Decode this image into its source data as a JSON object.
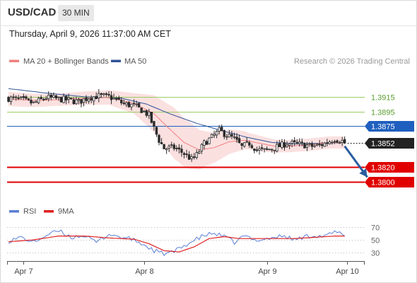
{
  "header": {
    "symbol": "USD/CAD",
    "timeframe": "30 MIN",
    "datetime": "Thursday, April 9, 2026 11:37:00 AM CET"
  },
  "legend": {
    "ma20_label": "MA 20 + Bollinger Bands",
    "ma50_label": "MA 50",
    "credit": "Research © 2026 Trading Central",
    "ma20_color": "#f08080",
    "ma50_color": "#2f5597"
  },
  "rsi_legend": {
    "rsi_label": "RSI",
    "ma9_label": "9MA",
    "rsi_color": "#5b7fd6",
    "ma9_color": "#e02020"
  },
  "chart_data": [
    {
      "type": "candlestick",
      "ylim": [
        1.3768,
        1.3955
      ],
      "levels": [
        {
          "value": 1.3915,
          "label": "1.3915",
          "kind": "resistance-target",
          "color": "#9acd64"
        },
        {
          "value": 1.3895,
          "label": "1.3895",
          "kind": "resistance-target",
          "color": "#9acd64"
        },
        {
          "value": 1.3875,
          "label": "1.3875",
          "kind": "pivot",
          "color": "#1f5fbf"
        },
        {
          "value": 1.3852,
          "label": "1.3852",
          "kind": "last-price",
          "color": "#222222"
        },
        {
          "value": 1.382,
          "label": "1.3820",
          "kind": "support",
          "color": "#e00000"
        },
        {
          "value": 1.38,
          "label": "1.3800",
          "kind": "support",
          "color": "#e00000"
        }
      ],
      "x_labels": [
        "Apr 7",
        "Apr 8",
        "Apr 9",
        "Apr 10"
      ],
      "x_label_index": [
        6,
        54,
        103,
        135
      ],
      "bars_total": 140,
      "close_anchors": [
        [
          0,
          1.3913
        ],
        [
          5,
          1.3911
        ],
        [
          10,
          1.3906
        ],
        [
          15,
          1.3914
        ],
        [
          20,
          1.3912
        ],
        [
          25,
          1.391
        ],
        [
          28,
          1.3908
        ],
        [
          32,
          1.3914
        ],
        [
          36,
          1.3916
        ],
        [
          40,
          1.3915
        ],
        [
          43,
          1.3911
        ],
        [
          46,
          1.3905
        ],
        [
          50,
          1.3903
        ],
        [
          53,
          1.3897
        ],
        [
          56,
          1.389
        ],
        [
          58,
          1.3872
        ],
        [
          60,
          1.3856
        ],
        [
          62,
          1.3845
        ],
        [
          66,
          1.3846
        ],
        [
          70,
          1.3838
        ],
        [
          73,
          1.383
        ],
        [
          75,
          1.3836
        ],
        [
          78,
          1.3852
        ],
        [
          81,
          1.386
        ],
        [
          84,
          1.3869
        ],
        [
          86,
          1.3865
        ],
        [
          90,
          1.3858
        ],
        [
          93,
          1.3847
        ],
        [
          96,
          1.3852
        ],
        [
          99,
          1.3843
        ],
        [
          102,
          1.3842
        ],
        [
          105,
          1.3845
        ],
        [
          108,
          1.3848
        ],
        [
          111,
          1.3852
        ],
        [
          114,
          1.3851
        ],
        [
          117,
          1.385
        ],
        [
          121,
          1.3848
        ],
        [
          124,
          1.3849
        ],
        [
          127,
          1.3853
        ],
        [
          130,
          1.3858
        ],
        [
          133,
          1.3855
        ],
        [
          134,
          1.3852
        ]
      ],
      "ma20_anchors": [
        [
          0,
          1.3912
        ],
        [
          10,
          1.391
        ],
        [
          20,
          1.3911
        ],
        [
          30,
          1.3913
        ],
        [
          40,
          1.3914
        ],
        [
          50,
          1.3906
        ],
        [
          58,
          1.3892
        ],
        [
          64,
          1.3872
        ],
        [
          70,
          1.3853
        ],
        [
          76,
          1.3843
        ],
        [
          82,
          1.3846
        ],
        [
          88,
          1.3854
        ],
        [
          94,
          1.3856
        ],
        [
          100,
          1.3852
        ],
        [
          106,
          1.3848
        ],
        [
          112,
          1.3848
        ],
        [
          120,
          1.385
        ],
        [
          128,
          1.3853
        ],
        [
          134,
          1.3853
        ]
      ],
      "bb_width_anchors": [
        [
          0,
          1.0007
        ],
        [
          20,
          1.0006
        ],
        [
          40,
          1.0007
        ],
        [
          50,
          1.001
        ],
        [
          58,
          1.0018
        ],
        [
          66,
          1.0025
        ],
        [
          72,
          1.0023
        ],
        [
          80,
          1.0016
        ],
        [
          88,
          1.0012
        ],
        [
          96,
          1.0008
        ],
        [
          110,
          1.0006
        ],
        [
          134,
          1.0006
        ]
      ],
      "ma50_anchors": [
        [
          0,
          1.3926
        ],
        [
          15,
          1.392
        ],
        [
          30,
          1.3915
        ],
        [
          45,
          1.3913
        ],
        [
          55,
          1.3905
        ],
        [
          65,
          1.3891
        ],
        [
          75,
          1.3879
        ],
        [
          85,
          1.3869
        ],
        [
          95,
          1.386
        ],
        [
          105,
          1.3853
        ],
        [
          115,
          1.3851
        ],
        [
          125,
          1.3852
        ],
        [
          134,
          1.3853
        ]
      ],
      "forecast_arrow": {
        "from_index": 134,
        "from_value": 1.3848,
        "to_index": 143,
        "to_value": 1.3806
      }
    },
    {
      "type": "line",
      "title": "RSI",
      "ylim": [
        20,
        80
      ],
      "yticks": [
        70,
        50,
        30
      ],
      "rsi_anchors": [
        [
          0,
          48
        ],
        [
          5,
          54
        ],
        [
          10,
          46
        ],
        [
          15,
          57
        ],
        [
          20,
          64
        ],
        [
          25,
          54
        ],
        [
          30,
          57
        ],
        [
          35,
          46
        ],
        [
          40,
          59
        ],
        [
          45,
          54
        ],
        [
          50,
          50
        ],
        [
          54,
          42
        ],
        [
          58,
          33
        ],
        [
          62,
          28
        ],
        [
          66,
          31
        ],
        [
          70,
          41
        ],
        [
          74,
          49
        ],
        [
          78,
          57
        ],
        [
          82,
          60
        ],
        [
          86,
          55
        ],
        [
          90,
          46
        ],
        [
          94,
          56
        ],
        [
          98,
          50
        ],
        [
          102,
          51
        ],
        [
          106,
          54
        ],
        [
          110,
          56
        ],
        [
          114,
          50
        ],
        [
          118,
          55
        ],
        [
          122,
          57
        ],
        [
          126,
          55
        ],
        [
          130,
          62
        ],
        [
          134,
          58
        ]
      ],
      "ma9_anchors": [
        [
          0,
          47
        ],
        [
          10,
          50
        ],
        [
          20,
          56
        ],
        [
          30,
          56
        ],
        [
          40,
          53
        ],
        [
          50,
          51
        ],
        [
          56,
          44
        ],
        [
          62,
          33
        ],
        [
          68,
          31
        ],
        [
          74,
          39
        ],
        [
          80,
          52
        ],
        [
          86,
          55
        ],
        [
          92,
          52
        ],
        [
          98,
          52
        ],
        [
          106,
          52
        ],
        [
          114,
          52
        ],
        [
          122,
          54
        ],
        [
          130,
          56
        ],
        [
          134,
          56
        ]
      ]
    }
  ]
}
